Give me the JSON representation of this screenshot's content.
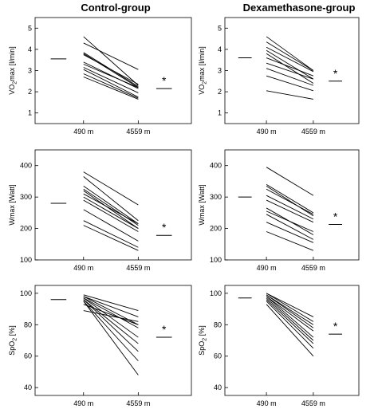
{
  "titles": {
    "left": "Control-group",
    "right": "Dexamethasone-group"
  },
  "chart_data": [
    {
      "type": "line",
      "group": "Control-group",
      "categories": [
        "490 m",
        "4559 m"
      ],
      "ylabel": "VO2max [l/min]",
      "ylabel_main": "VO",
      "ylabel_sub": "2",
      "ylabel_rest": "max [l/min]",
      "ylim": [
        0.5,
        5.5
      ],
      "yticks": [
        1,
        2,
        3,
        4,
        5
      ],
      "series_values": [
        [
          4.6,
          2.3
        ],
        [
          4.3,
          3.05
        ],
        [
          3.85,
          2.25
        ],
        [
          3.8,
          2.2
        ],
        [
          3.75,
          2.35
        ],
        [
          3.4,
          2.15
        ],
        [
          3.3,
          2.2
        ],
        [
          3.15,
          1.95
        ],
        [
          3.05,
          1.75
        ],
        [
          2.85,
          1.7
        ],
        [
          2.7,
          1.65
        ]
      ],
      "mean_values": [
        3.55,
        2.15
      ],
      "annotation": "*"
    },
    {
      "type": "line",
      "group": "Dexamethasone-group",
      "categories": [
        "490 m",
        "4559 m"
      ],
      "ylabel": "VO2max [l/min]",
      "ylabel_main": "VO",
      "ylabel_sub": "2",
      "ylabel_rest": "max [l/min]",
      "ylim": [
        0.5,
        5.5
      ],
      "yticks": [
        1,
        2,
        3,
        4,
        5
      ],
      "series_values": [
        [
          4.6,
          3.0
        ],
        [
          4.35,
          3.0
        ],
        [
          4.1,
          2.95
        ],
        [
          3.95,
          2.6
        ],
        [
          3.8,
          2.4
        ],
        [
          3.6,
          2.75
        ],
        [
          3.35,
          2.6
        ],
        [
          3.1,
          2.3
        ],
        [
          2.75,
          2.05
        ],
        [
          2.05,
          1.65
        ]
      ],
      "mean_values": [
        3.6,
        2.5
      ],
      "annotation": "*"
    },
    {
      "type": "line",
      "group": "Control-group",
      "categories": [
        "490 m",
        "4559 m"
      ],
      "ylabel": "Wmax [Watt]",
      "ylabel_main": "Wmax [Watt]",
      "ylabel_sub": "",
      "ylabel_rest": "",
      "ylim": [
        100,
        450
      ],
      "yticks": [
        100,
        200,
        300,
        400
      ],
      "series_values": [
        [
          380,
          275
        ],
        [
          365,
          225
        ],
        [
          335,
          215
        ],
        [
          325,
          210
        ],
        [
          320,
          200
        ],
        [
          310,
          215
        ],
        [
          300,
          200
        ],
        [
          290,
          190
        ],
        [
          260,
          160
        ],
        [
          225,
          140
        ],
        [
          210,
          130
        ]
      ],
      "mean_values": [
        280,
        178
      ],
      "annotation": "*"
    },
    {
      "type": "line",
      "group": "Dexamethasone-group",
      "categories": [
        "490 m",
        "4559 m"
      ],
      "ylabel": "Wmax [Watt]",
      "ylabel_main": "Wmax [Watt]",
      "ylabel_sub": "",
      "ylabel_rest": "",
      "ylim": [
        100,
        450
      ],
      "yticks": [
        100,
        200,
        300,
        400
      ],
      "series_values": [
        [
          395,
          305
        ],
        [
          340,
          250
        ],
        [
          335,
          240
        ],
        [
          325,
          245
        ],
        [
          305,
          230
        ],
        [
          290,
          220
        ],
        [
          265,
          180
        ],
        [
          255,
          190
        ],
        [
          245,
          165
        ],
        [
          220,
          155
        ],
        [
          190,
          130
        ]
      ],
      "mean_values": [
        300,
        213
      ],
      "annotation": "*"
    },
    {
      "type": "line",
      "group": "Control-group",
      "categories": [
        "490 m",
        "4559 m"
      ],
      "ylabel": "SpO2 [%]",
      "ylabel_main": "SpO",
      "ylabel_sub": "2",
      "ylabel_rest": " [%]",
      "ylim": [
        35,
        105
      ],
      "yticks": [
        40,
        60,
        80,
        100
      ],
      "series_values": [
        [
          99,
          89
        ],
        [
          98,
          85
        ],
        [
          98,
          80
        ],
        [
          97,
          78
        ],
        [
          97,
          72
        ],
        [
          96,
          68
        ],
        [
          96,
          63
        ],
        [
          95,
          57
        ],
        [
          95,
          48
        ],
        [
          93,
          80
        ],
        [
          89,
          82
        ]
      ],
      "mean_values": [
        96,
        72
      ],
      "annotation": "*"
    },
    {
      "type": "line",
      "group": "Dexamethasone-group",
      "categories": [
        "490 m",
        "4559 m"
      ],
      "ylabel": "SpO2 [%]",
      "ylabel_main": "SpO",
      "ylabel_sub": "2",
      "ylabel_rest": " [%]",
      "ylim": [
        35,
        105
      ],
      "yticks": [
        40,
        60,
        80,
        100
      ],
      "series_values": [
        [
          100,
          85
        ],
        [
          100,
          82
        ],
        [
          99,
          80
        ],
        [
          99,
          78
        ],
        [
          98,
          76
        ],
        [
          98,
          72
        ],
        [
          97,
          70
        ],
        [
          96,
          68
        ],
        [
          95,
          65
        ],
        [
          93,
          60
        ]
      ],
      "mean_values": [
        97,
        74
      ],
      "annotation": "*"
    }
  ]
}
